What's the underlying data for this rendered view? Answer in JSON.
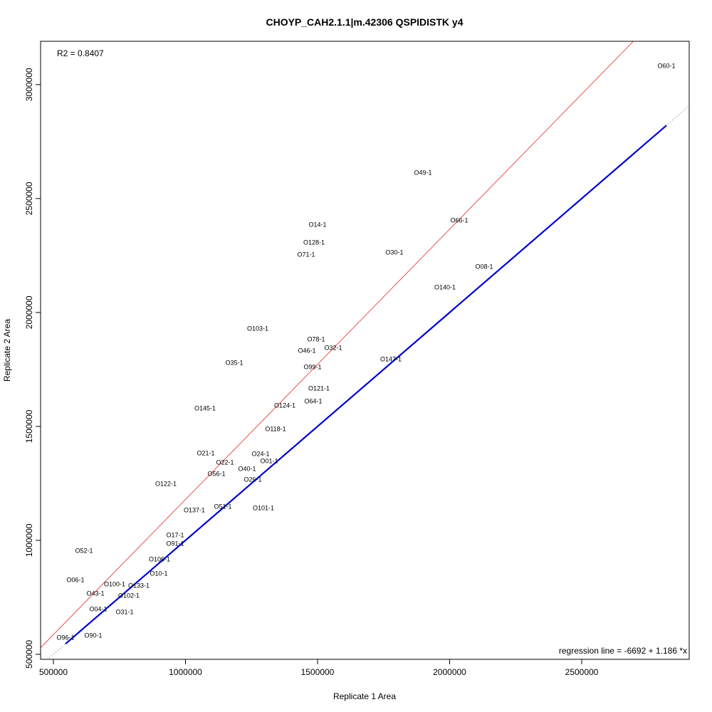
{
  "chart_data": {
    "type": "scatter",
    "title": "CHOYP_CAH2.1.1|m.42306 QSPIDISTK y4",
    "xlabel": "Replicate 1 Area",
    "ylabel": "Replicate 2 Area",
    "xlim": [
      451500,
      2907000
    ],
    "ylim": [
      478000,
      3190000
    ],
    "xticks": [
      500000,
      1000000,
      1500000,
      2000000,
      2500000
    ],
    "yticks": [
      500000,
      1000000,
      1500000,
      2000000,
      2500000,
      3000000
    ],
    "xtick_labels": [
      "500000",
      "1000000",
      "1500000",
      "2000000",
      "2500000"
    ],
    "ytick_labels": [
      "500000",
      "1000000",
      "1500000",
      "2000000",
      "2500000",
      "3000000"
    ],
    "grid": false,
    "r2_label": "R2 = 0.8407",
    "regression_label": "regression line = -6692 + 1.186 *x",
    "regression": {
      "intercept": -6692,
      "slope": 1.186,
      "color": "#e8524f"
    },
    "identity_line": {
      "intercept": 0,
      "slope": 1,
      "color": "#0000cc",
      "x_range": [
        545800,
        2820700
      ]
    },
    "reference_line": {
      "intercept": 0,
      "slope": 1,
      "color": "#666666",
      "style": "dotted"
    },
    "points": [
      {
        "label": "O60-1",
        "x": 2820700,
        "y": 3084000
      },
      {
        "label": "O49-1",
        "x": 1898900,
        "y": 2615600
      },
      {
        "label": "O14-1",
        "x": 1500000,
        "y": 2387500
      },
      {
        "label": "O66-1",
        "x": 2036400,
        "y": 2406250
      },
      {
        "label": "O128-1",
        "x": 1486500,
        "y": 2309400
      },
      {
        "label": "O71-1",
        "x": 1456900,
        "y": 2256250
      },
      {
        "label": "O30-1",
        "x": 1791100,
        "y": 2265600
      },
      {
        "label": "O08-1",
        "x": 2130700,
        "y": 2203100
      },
      {
        "label": "O140-1",
        "x": 1982500,
        "y": 2112500
      },
      {
        "label": "O103-1",
        "x": 1273600,
        "y": 1931250
      },
      {
        "label": "O78-1",
        "x": 1494600,
        "y": 1884400
      },
      {
        "label": "O32-1",
        "x": 1559300,
        "y": 1878100
      },
      {
        "label": "O46-1",
        "x": 1459600,
        "y": 1865600
      },
      {
        "label": "O35-1",
        "x": 1184600,
        "y": 1781250
      },
      {
        "label": "O147-1",
        "x": 1777600,
        "y": 1796900
      },
      {
        "label": "O99-1",
        "x": 1481100,
        "y": 1762500
      },
      {
        "label": "O121-1",
        "x": 1505400,
        "y": 1668750
      },
      {
        "label": "O64-1",
        "x": 1483800,
        "y": 1643750
      },
      {
        "label": "O145-1",
        "x": 1074100,
        "y": 1581250
      },
      {
        "label": "O124-1",
        "x": 1376000,
        "y": 1593750
      },
      {
        "label": "O118-1",
        "x": 1341000,
        "y": 1490600
      },
      {
        "label": "O21-1",
        "x": 1076800,
        "y": 1384400
      },
      {
        "label": "O24-1",
        "x": 1284400,
        "y": 1381250
      },
      {
        "label": "O01-1",
        "x": 1316700,
        "y": 1381250
      },
      {
        "label": "O22-1",
        "x": 1149600,
        "y": 1343750
      },
      {
        "label": "O40-1",
        "x": 1233200,
        "y": 1315600
      },
      {
        "label": "O26-1",
        "x": 1254700,
        "y": 1300000
      },
      {
        "label": "O56-1",
        "x": 1117300,
        "y": 1293750
      },
      {
        "label": "O122-1",
        "x": 925900,
        "y": 1250000
      },
      {
        "label": "O137-1",
        "x": 1033700,
        "y": 1134400
      },
      {
        "label": "O51-1",
        "x": 1141500,
        "y": 1150000
      },
      {
        "label": "O101-1",
        "x": 1295100,
        "y": 1143750
      },
      {
        "label": "O17-1",
        "x": 960900,
        "y": 1025000
      },
      {
        "label": "O91-1",
        "x": 960900,
        "y": 987500
      },
      {
        "label": "O52-1",
        "x": 615900,
        "y": 956250
      },
      {
        "label": "O106-1",
        "x": 901600,
        "y": 918750
      },
      {
        "label": "O10-1",
        "x": 898900,
        "y": 856250
      },
      {
        "label": "O06-1",
        "x": 583600,
        "y": 828100
      },
      {
        "label": "O133-1",
        "x": 823500,
        "y": 834400
      },
      {
        "label": "O102-1",
        "x": 785700,
        "y": 790600
      },
      {
        "label": "O100-1",
        "x": 731800,
        "y": 778100
      },
      {
        "label": "O43-1",
        "x": 659000,
        "y": 768750
      },
      {
        "label": "O04-1",
        "x": 669800,
        "y": 700000
      },
      {
        "label": "O31-1",
        "x": 769500,
        "y": 687500
      },
      {
        "label": "O90-1",
        "x": 650900,
        "y": 584400
      },
      {
        "label": "O96-1",
        "x": 545800,
        "y": 575000
      }
    ]
  }
}
